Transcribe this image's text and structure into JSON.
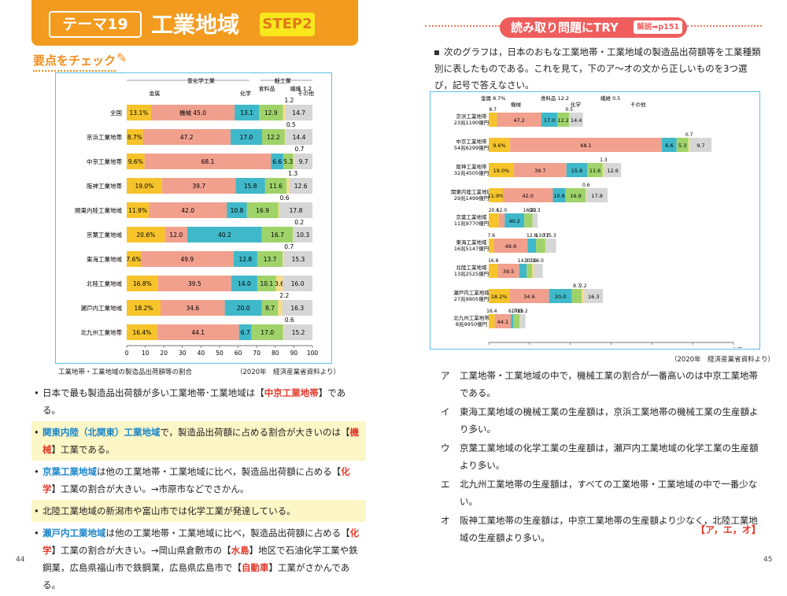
{
  "left": {
    "theme_badge": "テーマ19",
    "title": "工業地域",
    "step": "STEP2",
    "check_heading": "要点をチェック",
    "caption": "工業地帯・工業地域の製造品出荷額等の割合",
    "source": "（2020年　経済産業省資料より）",
    "page_number": "44",
    "bullets": [
      {
        "pre": "日本で最も製造品出荷額が多い工業地帯･工業地域は【",
        "hl": "中京工業地帯",
        "post": "】である。",
        "highlight": false
      },
      {
        "pre": "",
        "blue": "関東内陸（北関東）工業地域",
        "mid": "で，製造品出荷額に占める割合が大きいのは【",
        "hl": "機械",
        "post": "】工業である。",
        "highlight": true
      },
      {
        "pre": "",
        "blue": "京葉工業地域",
        "mid": "は他の工業地帯・工業地域に比べ，製造品出荷額に占める【",
        "hl": "化学",
        "post": "】工業の割合が大きい。→市原市などでさかん。",
        "highlight": false
      },
      {
        "pre": "北陸工業地域の新潟市や富山市では化学工業が発達している。",
        "highlight": true
      },
      {
        "pre": "",
        "blue": "瀬戸内工業地域",
        "mid": "は他の工業地帯・工業地域に比べ，製造品出荷額に占める【",
        "hl": "化学",
        "post": "】工業の割合が大きい。→岡山県倉敷市の【",
        "hl2": "水島",
        "post2": "】地区で石油化学工業や鉄鋼業，広島県福山市で鉄鋼業，広島県広島市で【",
        "hl3": "自動車",
        "post3": "】工業がさかんである。",
        "highlight": false
      }
    ]
  },
  "right": {
    "try_title": "読み取り問題にTRY",
    "kaisetsu": "解説➡p151",
    "question": "次のグラフは，日本のおもな工業地帯・工業地域の製造品出荷額等を工業種類別に表したものである。これを見て，下のア～オの文から正しいものを3つ選び，記号で答えなさい。",
    "source": "（2020年　経済産業省資料より）",
    "choices": [
      {
        "k": "ア",
        "t": "工業地帯・工業地域の中で，機械工業の割合が一番高いのは中京工業地帯である。"
      },
      {
        "k": "イ",
        "t": "東海工業地域の機械工業の生産額は，京浜工業地帯の機械工業の生産額より多い。"
      },
      {
        "k": "ウ",
        "t": "京葉工業地域の化学工業の生産額は，瀬戸内工業地域の化学工業の生産額より多い。"
      },
      {
        "k": "エ",
        "t": "北九州工業地帯の生産額は，すべての工業地帯・工業地域の中で一番少ない。"
      },
      {
        "k": "オ",
        "t": "阪神工業地帯の生産額は，中京工業地帯の生産額より少なく，北陸工業地域の生産額より多い。"
      }
    ],
    "answer": "【ア，エ，オ】",
    "page_number": "45"
  },
  "colors": {
    "金属": "#f6c42a",
    "機械": "#f2a08e",
    "化学": "#3fb8c9",
    "食料品": "#9fd36a",
    "繊維": "#f4dd86",
    "その他": "#d6d6d6"
  },
  "chart_data": [
    {
      "type": "bar",
      "orientation": "horizontal-stacked-percent",
      "group_labels": [
        "重化学工業",
        "軽工業"
      ],
      "series_order": [
        "金属",
        "機械",
        "化学",
        "食料品",
        "繊維",
        "その他"
      ],
      "categories": [
        "全国",
        "京浜工業地帯",
        "中京工業地帯",
        "阪神工業地帯",
        "関東内陸工業地域",
        "京葉工業地域",
        "東海工業地域",
        "北陸工業地域",
        "瀬戸内工業地域",
        "北九州工業地帯"
      ],
      "rows": [
        {
          "v": [
            13.1,
            45.0,
            13.1,
            12.9,
            1.2,
            14.7
          ],
          "labels": [
            "13.1%",
            "機械 45.0",
            "13.1",
            "12.9",
            "1.2",
            "14.7"
          ]
        },
        {
          "v": [
            8.7,
            47.2,
            17.0,
            12.2,
            0.5,
            14.4
          ],
          "labels": [
            "8.7%",
            "47.2",
            "17.0",
            "12.2",
            "0.5",
            "14.4"
          ]
        },
        {
          "v": [
            9.6,
            68.1,
            6.6,
            5.3,
            0.7,
            9.7
          ],
          "labels": [
            "9.6%",
            "68.1",
            "6.6",
            "5.3",
            "0.7",
            "9.7"
          ]
        },
        {
          "v": [
            19.0,
            39.7,
            15.8,
            11.6,
            1.3,
            12.6
          ],
          "labels": [
            "19.0%",
            "39.7",
            "15.8",
            "11.6",
            "1.3",
            "12.6"
          ]
        },
        {
          "v": [
            11.9,
            42.0,
            10.8,
            16.9,
            0.6,
            17.8
          ],
          "labels": [
            "11.9%",
            "42.0",
            "10.8",
            "16.9",
            "0.6",
            "17.8"
          ]
        },
        {
          "v": [
            20.6,
            12.0,
            40.2,
            16.7,
            0.2,
            10.3
          ],
          "labels": [
            "20.6%",
            "12.0",
            "40.2",
            "16.7",
            "0.2",
            "10.3"
          ]
        },
        {
          "v": [
            7.6,
            49.9,
            12.8,
            13.7,
            0.7,
            15.3
          ],
          "labels": [
            "7.6%",
            "49.9",
            "12.8",
            "13.7",
            "0.7",
            "15.3"
          ]
        },
        {
          "v": [
            16.8,
            39.5,
            14.0,
            10.1,
            3.6,
            16.0
          ],
          "labels": [
            "16.8%",
            "39.5",
            "14.0",
            "10.1",
            "3.6",
            "16.0"
          ]
        },
        {
          "v": [
            18.2,
            34.6,
            20.0,
            8.7,
            2.2,
            16.3
          ],
          "labels": [
            "18.2%",
            "34.6",
            "20.0",
            "8.7",
            "2.2",
            "16.3"
          ]
        },
        {
          "v": [
            16.4,
            44.1,
            6.7,
            17.0,
            0.6,
            15.2
          ],
          "labels": [
            "16.4%",
            "44.1",
            "6.7",
            "17.0",
            "0.6",
            "15.2"
          ]
        }
      ],
      "xlim": [
        0,
        100
      ],
      "xticks": [
        "0",
        "10",
        "20",
        "30",
        "40",
        "50",
        "60",
        "70",
        "80",
        "90",
        "100"
      ]
    },
    {
      "type": "bar",
      "orientation": "horizontal-stacked-amount",
      "unit": "兆円",
      "categories": [
        "京浜工業地帯",
        "中京工業地帯",
        "阪神工業地帯",
        "関東内陸工業地域",
        "京葉工業地域",
        "東海工業地域",
        "北陸工業地域",
        "瀬戸内工業地域",
        "北九州工業地帯"
      ],
      "totals": [
        "23兆1190億円",
        "54兆6299億円",
        "32兆4505億円",
        "29兆1499億円",
        "11兆9770億円",
        "16兆5147億円",
        "13兆2525億円",
        "27兆9905億円",
        "8兆9950億円"
      ],
      "total_values": [
        23.119,
        54.6299,
        32.4505,
        29.1499,
        11.977,
        16.5147,
        13.2525,
        27.9905,
        8.995
      ],
      "percents": [
        [
          8.7,
          47.2,
          17.0,
          12.2,
          0.5,
          14.4
        ],
        [
          9.6,
          68.1,
          6.6,
          5.3,
          0.7,
          9.7
        ],
        [
          19.0,
          39.7,
          15.8,
          11.6,
          1.3,
          12.6
        ],
        [
          11.9,
          42.0,
          10.8,
          16.9,
          0.6,
          17.8
        ],
        [
          20.6,
          12.0,
          40.2,
          16.7,
          0.2,
          10.3
        ],
        [
          7.6,
          49.9,
          12.8,
          13.7,
          0.7,
          15.3
        ],
        [
          16.8,
          39.5,
          14.0,
          10.1,
          3.6,
          16.0
        ],
        [
          18.2,
          34.6,
          20.0,
          8.7,
          2.2,
          16.3
        ],
        [
          16.4,
          44.1,
          6.7,
          17.0,
          0.6,
          15.2
        ]
      ],
      "legend_top": [
        "金属 8.7%",
        "機械",
        "食料品 12.2",
        "化学",
        "繊維 0.5",
        "その他"
      ],
      "xlim": [
        0,
        60
      ],
      "xticks": [
        "0",
        "10",
        "20",
        "30",
        "40",
        "50",
        "60兆円"
      ]
    }
  ]
}
